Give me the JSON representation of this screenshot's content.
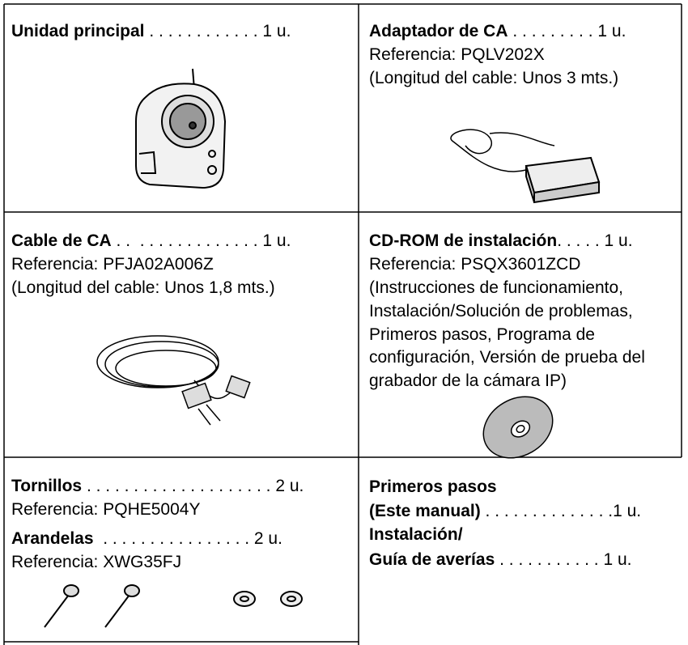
{
  "cells": [
    {
      "rows": [
        {
          "bold": "Unidad principal",
          "text": " . . . . . . . . . . . . 1 u."
        }
      ]
    },
    {
      "rows": [
        {
          "bold": "Adaptador de CA",
          "text": " . . . . . . . . . 1 u."
        },
        {
          "text": "Referencia: PQLV202X"
        },
        {
          "text": "(Longitud del cable: Unos 3 mts.)"
        }
      ]
    },
    {
      "rows": [
        {
          "bold": "Cable de CA",
          "text": " . .  . . . . . . . . . . . . . 1 u."
        },
        {
          "text": "Referencia: PFJA02A006Z"
        },
        {
          "text": "(Longitud del cable: Unos 1,8 mts.)"
        }
      ]
    },
    {
      "rows": [
        {
          "bold": "CD-ROM de instalación",
          "text": ". . . . . 1 u."
        },
        {
          "text": "Referencia: PSQX3601ZCD"
        },
        {
          "text": "(Instrucciones de funcionamiento,"
        },
        {
          "text": "Instalación/Solución de problemas,"
        },
        {
          "text": "Primeros pasos, Programa de"
        },
        {
          "text": "configuración, Versión de prueba del"
        },
        {
          "text": "grabador de la cámara IP)"
        }
      ]
    },
    {
      "rows": [
        {
          "bold": "Tornillos",
          "text": " . . . . . . . . . . . . . . . . . . . . 2 u."
        },
        {
          "text": "Referencia: PQHE5004Y"
        },
        {
          "bold": "Arandelas",
          "text": "  . . . . . . . . . . . . . . . . 2 u."
        },
        {
          "text": "Referencia: XWG35FJ"
        }
      ]
    },
    {
      "rows": [
        {
          "bold": "Primeros pasos"
        },
        {
          "bold": "(Este manual)",
          "text": " . . . . . . . . . . . . . .1 u."
        },
        {
          "bold": "Instalación/"
        },
        {
          "bold": "Guía de averías",
          "text": " . . . . . . . . . . . 1 u."
        }
      ]
    }
  ]
}
